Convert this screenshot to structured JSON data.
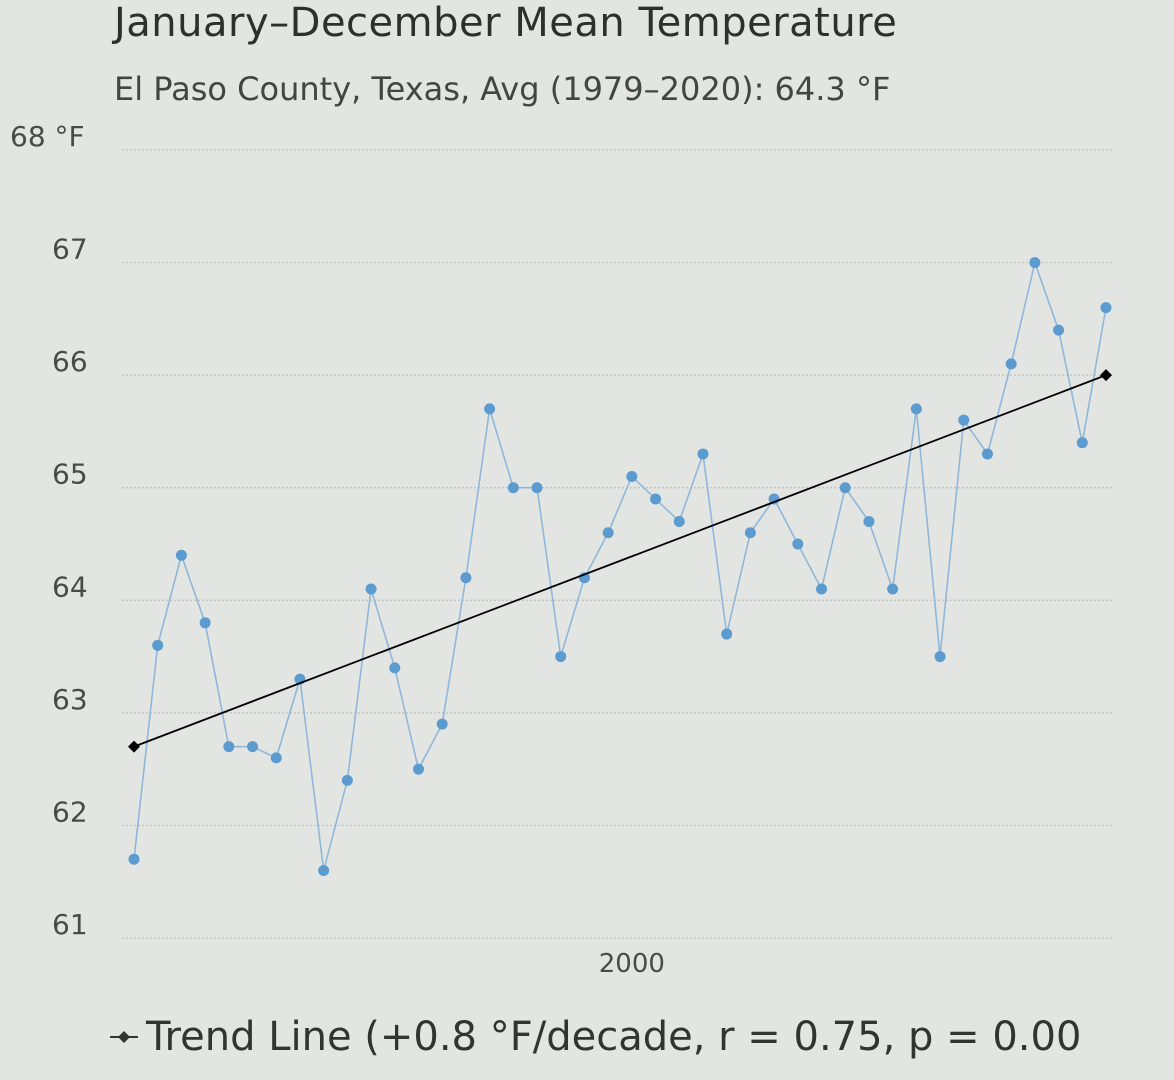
{
  "title": "January–December Mean Temperature",
  "subtitle": "El Paso County, Texas, Avg (1979–2020): 64.3 °F",
  "legend": {
    "trend_label": "Trend Line (+0.8 °F/decade, r = 0.75, p = 0.00"
  },
  "colors": {
    "series": "#5b9bd0",
    "series_line": "#8fb7d9",
    "trend": "#000000",
    "grid": "#bfc2bf",
    "background": "#e3e5e3"
  },
  "chart_data": {
    "type": "line",
    "title": "January–December Mean Temperature",
    "subtitle": "El Paso County, Texas, Avg (1979–2020): 64.3 °F",
    "y_unit": "°F",
    "ylim": [
      61,
      68
    ],
    "yticks": [
      {
        "value": 68,
        "label": "68 °F"
      },
      {
        "value": 67,
        "label": "67"
      },
      {
        "value": 66,
        "label": "66"
      },
      {
        "value": 65,
        "label": "65"
      },
      {
        "value": 64,
        "label": "64"
      },
      {
        "value": 63,
        "label": "63"
      },
      {
        "value": 62,
        "label": "62"
      },
      {
        "value": 61,
        "label": "61"
      }
    ],
    "xlim": [
      1979,
      2020
    ],
    "xticks": [
      {
        "value": 2000,
        "label": "2000"
      }
    ],
    "grid": true,
    "series": [
      {
        "x": [
          1979,
          1980,
          1981,
          1982,
          1983,
          1984,
          1985,
          1986,
          1987,
          1988,
          1989,
          1990,
          1991,
          1992,
          1993,
          1994,
          1995,
          1996,
          1997,
          1998,
          1999,
          2000,
          2001,
          2002,
          2003,
          2004,
          2005,
          2006,
          2007,
          2008,
          2009,
          2010,
          2011,
          2012,
          2013,
          2014,
          2015,
          2016,
          2017,
          2018,
          2019,
          2020
        ],
        "values": [
          61.7,
          63.6,
          64.4,
          63.8,
          62.7,
          62.7,
          62.6,
          63.3,
          61.6,
          62.4,
          64.1,
          63.4,
          62.5,
          62.9,
          64.2,
          65.7,
          65.0,
          65.0,
          63.5,
          64.2,
          64.6,
          65.1,
          64.9,
          64.7,
          65.3,
          63.7,
          64.6,
          64.9,
          64.5,
          64.1,
          65.0,
          64.7,
          64.1,
          65.7,
          63.5,
          65.6,
          65.3,
          66.1,
          67.0,
          66.4,
          65.4,
          66.6
        ]
      }
    ],
    "trend_line": {
      "label": "Trend Line (+0.8 °F/decade, r = 0.75, p = 0.00",
      "x": [
        1979,
        2020
      ],
      "values": [
        62.7,
        66.0
      ]
    }
  }
}
